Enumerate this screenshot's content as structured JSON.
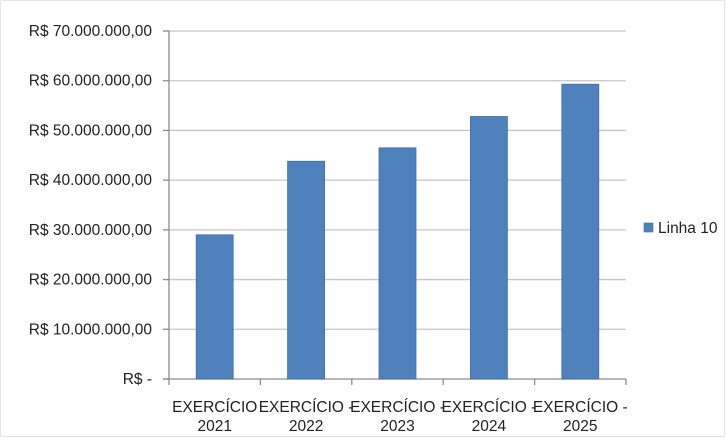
{
  "chart_data": {
    "type": "bar",
    "categories": [
      [
        "EXERCÍCIO",
        "2021"
      ],
      [
        "EXERCÍCIO -",
        "2022"
      ],
      [
        "EXERCÍCIO -",
        "2023"
      ],
      [
        "EXERCÍCIO -",
        "2024"
      ],
      [
        "EXERCÍCIO -",
        "2025"
      ]
    ],
    "series": [
      {
        "name": "Linha 10",
        "values": [
          29000000,
          43800000,
          46500000,
          52800000,
          59300000
        ]
      }
    ],
    "ylim": [
      0,
      70000000
    ],
    "yticks": [
      0,
      10000000,
      20000000,
      30000000,
      40000000,
      50000000,
      60000000,
      70000000
    ],
    "ytick_labels": [
      "R$ -",
      "R$ 10.000.000,00",
      "R$ 20.000.000,00",
      "R$ 30.000.000,00",
      "R$ 40.000.000,00",
      "R$ 50.000.000,00",
      "R$ 60.000.000,00",
      "R$ 70.000.000,00"
    ],
    "grid": true,
    "legend_position": "right",
    "colors": {
      "bar": "#4f81bd",
      "bar_edge": "#3f6ea8",
      "grid": "#c6c6c6",
      "axis": "#8c8c8c"
    }
  }
}
